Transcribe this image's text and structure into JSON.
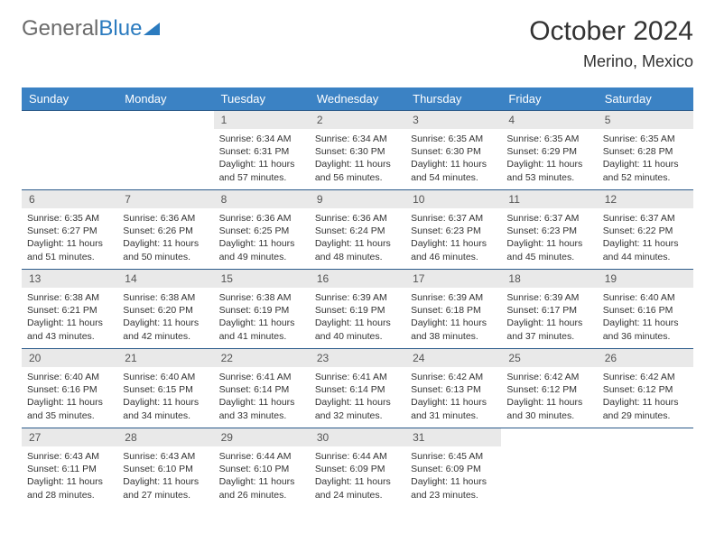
{
  "logo": {
    "text_gray": "General",
    "text_blue": "Blue"
  },
  "title": "October 2024",
  "location": "Merino, Mexico",
  "colors": {
    "header_bg": "#3b82c4",
    "header_text": "#ffffff",
    "daynum_bg": "#e9e9e9",
    "row_border": "#2b5a8a",
    "logo_gray": "#6b6b6b",
    "logo_blue": "#2b7bbf"
  },
  "weekdays": [
    "Sunday",
    "Monday",
    "Tuesday",
    "Wednesday",
    "Thursday",
    "Friday",
    "Saturday"
  ],
  "weeks": [
    [
      null,
      null,
      {
        "n": "1",
        "sr": "6:34 AM",
        "ss": "6:31 PM",
        "dl": "11 hours and 57 minutes."
      },
      {
        "n": "2",
        "sr": "6:34 AM",
        "ss": "6:30 PM",
        "dl": "11 hours and 56 minutes."
      },
      {
        "n": "3",
        "sr": "6:35 AM",
        "ss": "6:30 PM",
        "dl": "11 hours and 54 minutes."
      },
      {
        "n": "4",
        "sr": "6:35 AM",
        "ss": "6:29 PM",
        "dl": "11 hours and 53 minutes."
      },
      {
        "n": "5",
        "sr": "6:35 AM",
        "ss": "6:28 PM",
        "dl": "11 hours and 52 minutes."
      }
    ],
    [
      {
        "n": "6",
        "sr": "6:35 AM",
        "ss": "6:27 PM",
        "dl": "11 hours and 51 minutes."
      },
      {
        "n": "7",
        "sr": "6:36 AM",
        "ss": "6:26 PM",
        "dl": "11 hours and 50 minutes."
      },
      {
        "n": "8",
        "sr": "6:36 AM",
        "ss": "6:25 PM",
        "dl": "11 hours and 49 minutes."
      },
      {
        "n": "9",
        "sr": "6:36 AM",
        "ss": "6:24 PM",
        "dl": "11 hours and 48 minutes."
      },
      {
        "n": "10",
        "sr": "6:37 AM",
        "ss": "6:23 PM",
        "dl": "11 hours and 46 minutes."
      },
      {
        "n": "11",
        "sr": "6:37 AM",
        "ss": "6:23 PM",
        "dl": "11 hours and 45 minutes."
      },
      {
        "n": "12",
        "sr": "6:37 AM",
        "ss": "6:22 PM",
        "dl": "11 hours and 44 minutes."
      }
    ],
    [
      {
        "n": "13",
        "sr": "6:38 AM",
        "ss": "6:21 PM",
        "dl": "11 hours and 43 minutes."
      },
      {
        "n": "14",
        "sr": "6:38 AM",
        "ss": "6:20 PM",
        "dl": "11 hours and 42 minutes."
      },
      {
        "n": "15",
        "sr": "6:38 AM",
        "ss": "6:19 PM",
        "dl": "11 hours and 41 minutes."
      },
      {
        "n": "16",
        "sr": "6:39 AM",
        "ss": "6:19 PM",
        "dl": "11 hours and 40 minutes."
      },
      {
        "n": "17",
        "sr": "6:39 AM",
        "ss": "6:18 PM",
        "dl": "11 hours and 38 minutes."
      },
      {
        "n": "18",
        "sr": "6:39 AM",
        "ss": "6:17 PM",
        "dl": "11 hours and 37 minutes."
      },
      {
        "n": "19",
        "sr": "6:40 AM",
        "ss": "6:16 PM",
        "dl": "11 hours and 36 minutes."
      }
    ],
    [
      {
        "n": "20",
        "sr": "6:40 AM",
        "ss": "6:16 PM",
        "dl": "11 hours and 35 minutes."
      },
      {
        "n": "21",
        "sr": "6:40 AM",
        "ss": "6:15 PM",
        "dl": "11 hours and 34 minutes."
      },
      {
        "n": "22",
        "sr": "6:41 AM",
        "ss": "6:14 PM",
        "dl": "11 hours and 33 minutes."
      },
      {
        "n": "23",
        "sr": "6:41 AM",
        "ss": "6:14 PM",
        "dl": "11 hours and 32 minutes."
      },
      {
        "n": "24",
        "sr": "6:42 AM",
        "ss": "6:13 PM",
        "dl": "11 hours and 31 minutes."
      },
      {
        "n": "25",
        "sr": "6:42 AM",
        "ss": "6:12 PM",
        "dl": "11 hours and 30 minutes."
      },
      {
        "n": "26",
        "sr": "6:42 AM",
        "ss": "6:12 PM",
        "dl": "11 hours and 29 minutes."
      }
    ],
    [
      {
        "n": "27",
        "sr": "6:43 AM",
        "ss": "6:11 PM",
        "dl": "11 hours and 28 minutes."
      },
      {
        "n": "28",
        "sr": "6:43 AM",
        "ss": "6:10 PM",
        "dl": "11 hours and 27 minutes."
      },
      {
        "n": "29",
        "sr": "6:44 AM",
        "ss": "6:10 PM",
        "dl": "11 hours and 26 minutes."
      },
      {
        "n": "30",
        "sr": "6:44 AM",
        "ss": "6:09 PM",
        "dl": "11 hours and 24 minutes."
      },
      {
        "n": "31",
        "sr": "6:45 AM",
        "ss": "6:09 PM",
        "dl": "11 hours and 23 minutes."
      },
      null,
      null
    ]
  ],
  "labels": {
    "sunrise": "Sunrise:",
    "sunset": "Sunset:",
    "daylight": "Daylight:"
  }
}
